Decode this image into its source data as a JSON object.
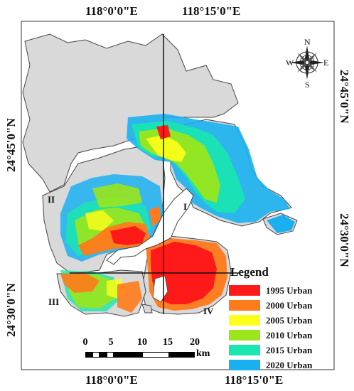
{
  "coordinates": {
    "top_left": "118°0'0\"E",
    "top_right": "118°15'0\"E",
    "bottom_left": "118°0'0\"E",
    "bottom_right": "118°15'0\"E",
    "left_upper": "24°45'0\"N",
    "left_lower": "24°30'0\"N",
    "right_upper": "24°45'0\"N",
    "right_lower": "24°30'0\"N"
  },
  "zones": {
    "I": "I",
    "II": "II",
    "III": "III",
    "IV": "IV"
  },
  "compass": {
    "N": "N",
    "S": "S",
    "E": "E",
    "W": "W"
  },
  "legend": {
    "title": "Legend",
    "items": [
      {
        "label": "1995 Urban",
        "color": "#ff1a1a"
      },
      {
        "label": "2000 Urban",
        "color": "#ff7a1a"
      },
      {
        "label": "2005 Urban",
        "color": "#ffff1a"
      },
      {
        "label": "2010 Urban",
        "color": "#9ae61a"
      },
      {
        "label": "2015 Urban",
        "color": "#1ae6b0"
      },
      {
        "label": "2020 Urban",
        "color": "#1ab0f0"
      }
    ]
  },
  "scale_bar": {
    "ticks": [
      "0",
      "5",
      "10",
      "15",
      "20"
    ],
    "unit": "km"
  }
}
